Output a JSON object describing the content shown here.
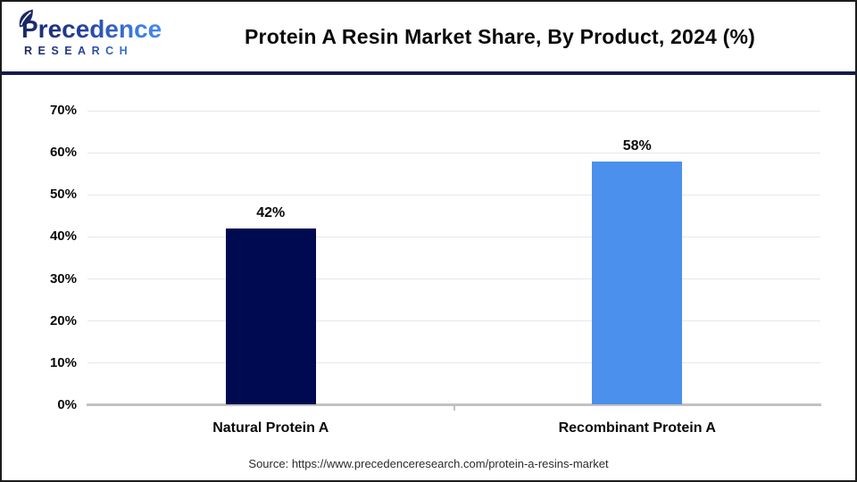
{
  "header": {
    "logo_line1": "Precedence",
    "logo_line2": "RESEARCH",
    "title": "Protein A Resin Market Share, By Product, 2024 (%)"
  },
  "chart_data": {
    "type": "bar",
    "title": "Protein A Resin Market Share, By Product, 2024 (%)",
    "categories": [
      "Natural Protein A",
      "Recombinant Protein A"
    ],
    "values": [
      42,
      58
    ],
    "value_labels": [
      "42%",
      "58%"
    ],
    "bar_colors": [
      "#000a50",
      "#4a90ec"
    ],
    "xlabel": "",
    "ylabel": "",
    "ylim": [
      0,
      70
    ],
    "ytick_step": 10,
    "ytick_suffix": "%",
    "grid": "horizontal-light-gray",
    "legend": "none"
  },
  "footer": {
    "source": "Source: https://www.precedenceresearch.com/protein-a-resins-market"
  },
  "colors": {
    "bar_navy": "#000a50",
    "bar_blue": "#4a90ec",
    "divider_navy": "#141b4d",
    "logo_navy": "#1b2766",
    "logo_blue": "#4a90ec",
    "gridline": "#e7e7e7",
    "axis_line": "#c2c2c2"
  }
}
